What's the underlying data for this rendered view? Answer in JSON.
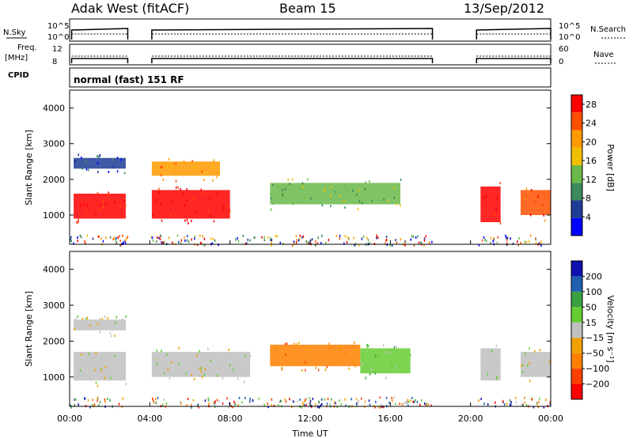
{
  "header": {
    "title": "Adak West (fitACF)",
    "beam": "Beam 15",
    "date": "13/Sep/2012"
  },
  "noise_panel": {
    "left_label": "N.Sky",
    "left_ticks": [
      "10^5",
      "10^0"
    ],
    "right_label": "N.Search",
    "right_ticks": [
      "10^5",
      "10^0"
    ]
  },
  "freq_panel": {
    "left_label_top": "Freq.",
    "left_label_unit": "[MHz]",
    "left_ticks": [
      "12",
      "8"
    ],
    "right_label": "Nave",
    "right_ticks": [
      "60",
      "0"
    ]
  },
  "cpid": {
    "label": "CPID",
    "mode": "normal (fast) 151 RF"
  },
  "colors": {
    "power": [
      "#0000ff",
      "#1e3c96",
      "#3a8a5a",
      "#6ab84a",
      "#f0c000",
      "#ff9a00",
      "#ff5000",
      "#ff0000"
    ],
    "velocity": [
      "#ff0000",
      "#ff4000",
      "#ff8000",
      "#f0a000",
      "#c0c0c0",
      "#66cc33",
      "#3aa040",
      "#2060b0",
      "#1010b0"
    ]
  },
  "chart_data": [
    {
      "type": "heatmap",
      "name": "power",
      "xlabel": "",
      "ylabel": "Slant Range [km]",
      "x_ticks": [
        "00:00",
        "04:00",
        "08:00",
        "12:00",
        "16:00",
        "20:00",
        "00:00"
      ],
      "xlim_hours": [
        0,
        24
      ],
      "y_ticks": [
        1000,
        2000,
        3000,
        4000
      ],
      "ylim_km": [
        180,
        4500
      ],
      "colorbar": {
        "label": "Power [dB]",
        "ticks": [
          4,
          8,
          12,
          16,
          20,
          24,
          28
        ],
        "range": [
          0,
          30
        ]
      },
      "echo_bands": [
        {
          "t_start": 0.2,
          "t_end": 2.8,
          "r_low": 900,
          "r_high": 1600,
          "level": 7
        },
        {
          "t_start": 0.2,
          "t_end": 2.8,
          "r_low": 2300,
          "r_high": 2600,
          "level": 1
        },
        {
          "t_start": 4.1,
          "t_end": 8.0,
          "r_low": 900,
          "r_high": 1700,
          "level": 7
        },
        {
          "t_start": 4.1,
          "t_end": 7.5,
          "r_low": 2100,
          "r_high": 2500,
          "level": 5
        },
        {
          "t_start": 10.0,
          "t_end": 16.5,
          "r_low": 1300,
          "r_high": 1900,
          "level": 3
        },
        {
          "t_start": 20.5,
          "t_end": 21.5,
          "r_low": 800,
          "r_high": 1800,
          "level": 7
        },
        {
          "t_start": 22.5,
          "t_end": 24.0,
          "r_low": 1000,
          "r_high": 1700,
          "level": 6
        }
      ]
    },
    {
      "type": "heatmap",
      "name": "velocity",
      "xlabel": "Time UT",
      "ylabel": "Slant Range [km]",
      "x_ticks": [
        "00:00",
        "04:00",
        "08:00",
        "12:00",
        "16:00",
        "20:00",
        "00:00"
      ],
      "xlim_hours": [
        0,
        24
      ],
      "y_ticks": [
        1000,
        2000,
        3000,
        4000
      ],
      "ylim_km": [
        180,
        4500
      ],
      "colorbar": {
        "label": "Velocity [m s⁻¹]",
        "ticks": [
          200,
          100,
          50,
          15,
          -15,
          -50,
          -100,
          -200
        ],
        "range": [
          -250,
          250
        ]
      },
      "echo_bands": [
        {
          "t_start": 0.2,
          "t_end": 2.8,
          "r_low": 900,
          "r_high": 1700,
          "level": 4
        },
        {
          "t_start": 0.2,
          "t_end": 2.8,
          "r_low": 2300,
          "r_high": 2600,
          "level": 4
        },
        {
          "t_start": 4.1,
          "t_end": 9.0,
          "r_low": 1000,
          "r_high": 1700,
          "level": 4
        },
        {
          "t_start": 10.0,
          "t_end": 14.5,
          "r_low": 1300,
          "r_high": 1900,
          "level": 2
        },
        {
          "t_start": 14.5,
          "t_end": 17.0,
          "r_low": 1100,
          "r_high": 1800,
          "level": 5
        },
        {
          "t_start": 20.5,
          "t_end": 21.5,
          "r_low": 900,
          "r_high": 1800,
          "level": 4
        },
        {
          "t_start": 22.5,
          "t_end": 24.0,
          "r_low": 1000,
          "r_high": 1700,
          "level": 4
        }
      ]
    }
  ]
}
